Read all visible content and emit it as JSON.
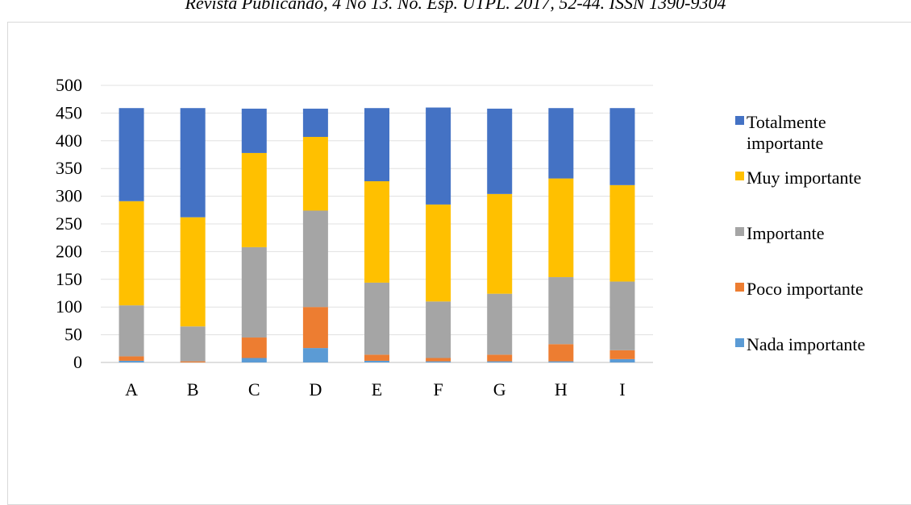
{
  "header": {
    "text": "Revista Publicando, 4 No 13. No. Esp. UTPL. 2017, 52-44. ISSN 1390-9304"
  },
  "chart_data": {
    "type": "bar",
    "stacked": true,
    "categories": [
      "A",
      "B",
      "C",
      "D",
      "E",
      "F",
      "G",
      "H",
      "I"
    ],
    "ylim": [
      0,
      500
    ],
    "yticks": [
      0,
      50,
      100,
      150,
      200,
      250,
      300,
      350,
      400,
      450,
      500
    ],
    "grid": true,
    "legend_position": "right",
    "series": [
      {
        "name": "Nada importante",
        "color": "#5b9bd5",
        "values": [
          3,
          0,
          8,
          26,
          3,
          2,
          2,
          2,
          6
        ]
      },
      {
        "name": "Poco importante",
        "color": "#ed7d31",
        "values": [
          8,
          2,
          37,
          74,
          11,
          6,
          12,
          31,
          16
        ]
      },
      {
        "name": "Importante",
        "color": "#a5a5a5",
        "values": [
          92,
          63,
          163,
          174,
          130,
          102,
          110,
          121,
          124
        ]
      },
      {
        "name": "Muy importante",
        "color": "#ffc000",
        "values": [
          188,
          197,
          170,
          133,
          183,
          175,
          180,
          178,
          174
        ]
      },
      {
        "name": "Totalmente importante",
        "color": "#4472c4",
        "legend_lines": [
          "Totalmente",
          "importante"
        ],
        "values": [
          168,
          197,
          80,
          51,
          132,
          175,
          154,
          127,
          139
        ]
      }
    ]
  }
}
